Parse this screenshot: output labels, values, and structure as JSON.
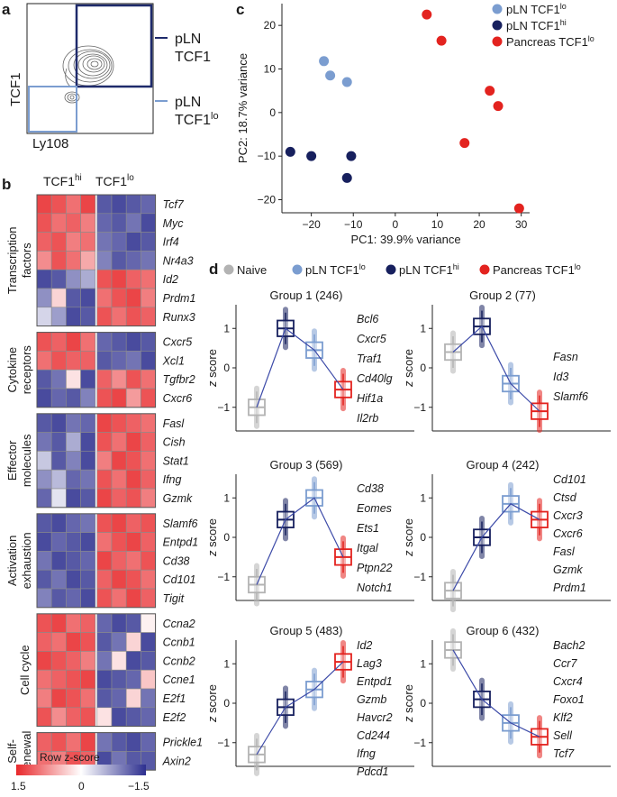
{
  "panels": {
    "a": {
      "label": "a",
      "gate_top_label": [
        "pLN",
        "TCF1"
      ],
      "gate_bottom_label": [
        "pLN",
        "TCF1",
        "lo"
      ],
      "ylabel": "TCF1",
      "xlabel": "Ly108"
    },
    "b": {
      "label": "b",
      "col_header_hi": [
        "TCF1",
        "hi"
      ],
      "col_header_lo": [
        "TCF1",
        "lo"
      ],
      "scale_title": "Row z-score",
      "scale_ticks": [
        "1.5",
        "0",
        "−1.5"
      ],
      "colors": {
        "high": "#e8282b",
        "mid": "#ffffff",
        "low": "#2d2f8f"
      },
      "groups": [
        {
          "category": [
            "Transcription",
            "factors"
          ],
          "genes": [
            "Tcf7",
            "Myc",
            "Irf4",
            "Nr4a3",
            "Id2",
            "Prdm1",
            "Runx3"
          ]
        },
        {
          "category": [
            "Cytokine",
            "receptors"
          ],
          "genes": [
            "Cxcr5",
            "Xcl1",
            "Tgfbr2",
            "Cxcr6"
          ]
        },
        {
          "category": [
            "Effector",
            "molecules"
          ],
          "genes": [
            "Fasl",
            "Cish",
            "Stat1",
            "Ifng",
            "Gzmk"
          ]
        },
        {
          "category": [
            "Activation",
            "exhaustion"
          ],
          "genes": [
            "Slamf6",
            "Entpd1",
            "Cd38",
            "Cd101",
            "Tigit"
          ]
        },
        {
          "category": [
            "Cell cycle"
          ],
          "genes": [
            "Ccna2",
            "Ccnb1",
            "Ccnb2",
            "Ccne1",
            "E2f1",
            "E2f2"
          ]
        },
        {
          "category": [
            "Self-",
            "renewal"
          ],
          "genes": [
            "Prickle1",
            "Axin2"
          ]
        }
      ],
      "heatmap": [
        [
          1.3,
          1.2,
          1.0,
          1.3,
          -1.2,
          -1.3,
          -1.2,
          -1.1
        ],
        [
          1.2,
          1.0,
          1.1,
          0.9,
          -1.1,
          -1.2,
          -1.0,
          -1.3
        ],
        [
          1.1,
          1.2,
          0.9,
          1.0,
          -1.0,
          -1.1,
          -1.3,
          -1.2
        ],
        [
          0.8,
          1.2,
          1.0,
          0.6,
          -0.9,
          -1.2,
          -1.1,
          -1.0
        ],
        [
          -1.3,
          -1.2,
          -0.8,
          -0.6,
          1.2,
          1.3,
          1.1,
          1.0
        ],
        [
          -0.8,
          0.3,
          -1.2,
          -1.3,
          1.0,
          1.2,
          1.3,
          0.9
        ],
        [
          -0.3,
          -0.7,
          -1.3,
          -1.2,
          1.2,
          1.0,
          1.2,
          1.1
        ],
        [
          1.2,
          1.1,
          1.3,
          1.0,
          -1.1,
          -1.2,
          -1.3,
          -1.2
        ],
        [
          1.0,
          1.2,
          1.1,
          1.1,
          -1.2,
          -1.1,
          -1.0,
          -1.3
        ],
        [
          -1.2,
          -1.0,
          0.2,
          -1.3,
          1.1,
          0.8,
          1.2,
          1.0
        ],
        [
          -1.3,
          -1.1,
          -1.2,
          -0.9,
          1.2,
          1.3,
          0.7,
          1.2
        ],
        [
          -1.2,
          -1.3,
          -1.0,
          -1.1,
          1.3,
          1.2,
          1.1,
          1.0
        ],
        [
          -1.0,
          -1.2,
          -0.6,
          -1.3,
          1.2,
          1.0,
          1.3,
          1.1
        ],
        [
          -0.4,
          -1.2,
          -0.9,
          -1.3,
          0.9,
          1.3,
          1.2,
          1.0
        ],
        [
          -0.8,
          -0.5,
          -1.1,
          -1.0,
          1.2,
          1.0,
          1.3,
          1.1
        ],
        [
          -1.1,
          -0.2,
          -1.3,
          -1.2,
          1.3,
          1.1,
          1.2,
          0.9
        ],
        [
          -1.2,
          -1.3,
          -1.1,
          -1.0,
          1.2,
          1.3,
          1.1,
          1.2
        ],
        [
          -1.3,
          -1.1,
          -1.2,
          -1.3,
          1.0,
          1.2,
          1.3,
          1.1
        ],
        [
          -1.0,
          -1.3,
          -1.2,
          -1.1,
          1.3,
          1.1,
          1.0,
          1.2
        ],
        [
          -1.2,
          -1.0,
          -1.3,
          -1.2,
          1.1,
          1.3,
          1.2,
          1.0
        ],
        [
          -0.9,
          -1.2,
          -1.1,
          -1.3,
          1.2,
          1.0,
          1.3,
          1.1
        ],
        [
          1.2,
          1.3,
          1.0,
          1.1,
          -1.1,
          -1.3,
          -1.2,
          0.1
        ],
        [
          1.1,
          1.0,
          1.3,
          1.2,
          -1.2,
          -1.0,
          0.3,
          -1.3
        ],
        [
          1.3,
          1.2,
          1.1,
          0.9,
          -1.0,
          0.2,
          -1.3,
          -1.2
        ],
        [
          1.0,
          1.1,
          1.2,
          1.3,
          -1.3,
          -1.2,
          -1.1,
          0.4
        ],
        [
          0.9,
          1.3,
          1.2,
          1.0,
          -1.2,
          -1.1,
          0.3,
          -1.0
        ],
        [
          1.2,
          0.8,
          1.1,
          1.2,
          0.2,
          -1.3,
          -1.2,
          -1.1
        ],
        [
          1.1,
          1.2,
          1.0,
          1.3,
          -1.0,
          -1.2,
          -1.3,
          -1.1
        ],
        [
          1.0,
          0.9,
          1.2,
          1.1,
          -1.3,
          -1.0,
          -1.2,
          -1.2
        ]
      ]
    },
    "c": {
      "label": "c",
      "chart_data": {
        "type": "scatter",
        "xlabel": "PC1: 39.9% variance",
        "ylabel": "PC2: 18.7% variance",
        "xlim": [
          -27,
          32
        ],
        "ylim": [
          -23,
          25
        ],
        "xticks": [
          -20,
          -10,
          0,
          10,
          20,
          30
        ],
        "yticks": [
          -20,
          -10,
          0,
          10,
          20
        ],
        "series": [
          {
            "name": "pLN TCF1lo",
            "name_base": "pLN TCF1",
            "name_sup": "lo",
            "color": "#7b9dd0",
            "x": [
              -17,
              -15.5,
              -11.5
            ],
            "y": [
              11.8,
              8.5,
              7.0
            ]
          },
          {
            "name": "pLN TCF1hi",
            "name_base": "pLN TCF1",
            "name_sup": "hi",
            "color": "#17205e",
            "x": [
              -25,
              -20,
              -10.5,
              -11.5
            ],
            "y": [
              -9,
              -10,
              -10,
              -15
            ]
          },
          {
            "name": "Pancreas TCF1lo",
            "name_base": "Pancreas TCF1",
            "name_sup": "lo",
            "color": "#e3231f",
            "x": [
              7.5,
              11,
              22.5,
              24.5,
              16.5,
              29.5
            ],
            "y": [
              22.5,
              16.5,
              5,
              1.5,
              -7,
              -22
            ]
          }
        ]
      }
    },
    "d": {
      "label": "d",
      "legend": [
        {
          "name": "Naive",
          "base": "Naive",
          "sup": "",
          "color": "#b3b3b3"
        },
        {
          "name": "pLN TCF1lo",
          "base": "pLN TCF1",
          "sup": "lo",
          "color": "#7b9dd0"
        },
        {
          "name": "pLN TCF1hi",
          "base": "pLN TCF1",
          "sup": "hi",
          "color": "#17205e"
        },
        {
          "name": "Pancreas TCF1lo",
          "base": "Pancreas TCF1",
          "sup": "lo",
          "color": "#e3231f"
        }
      ],
      "box_order": [
        "Naive",
        "pLN TCF1hi",
        "pLN TCF1lo",
        "Pancreas TCF1lo"
      ],
      "box_colors": [
        "#b3b3b3",
        "#17205e",
        "#7b9dd0",
        "#e3231f"
      ],
      "ylabel": "z score",
      "yticks": [
        1,
        0,
        -1
      ],
      "groups": [
        {
          "title": "Group 1 (246)",
          "medians": [
            -1.0,
            1.0,
            0.45,
            -0.55
          ],
          "genes": [
            "Bcl6",
            "Cxcr5",
            "Traf1",
            "Cd40lg",
            "Hif1a",
            "Il2rb"
          ]
        },
        {
          "title": "Group 2 (77)",
          "medians": [
            0.4,
            1.05,
            -0.4,
            -1.1
          ],
          "genes": [
            "Fasn",
            "Id3",
            "Slamf6"
          ]
        },
        {
          "title": "Group 3 (569)",
          "medians": [
            -1.2,
            0.45,
            1.0,
            -0.5
          ],
          "genes": [
            "Cd38",
            "Eomes",
            "Ets1",
            "Itgal",
            "Ptpn22",
            "Notch1"
          ]
        },
        {
          "title": "Group 4 (242)",
          "medians": [
            -1.35,
            0.0,
            0.85,
            0.45
          ],
          "genes": [
            "Cd101",
            "Ctsd",
            "Cxcr3",
            "Cxcr6",
            "Fasl",
            "Gzmk",
            "Prdm1"
          ]
        },
        {
          "title": "Group 5 (483)",
          "medians": [
            -1.3,
            -0.1,
            0.35,
            1.05
          ],
          "genes": [
            "Id2",
            "Lag3",
            "Entpd1",
            "Gzmb",
            "Havcr2",
            "Cd244",
            "Ifng",
            "Pdcd1"
          ]
        },
        {
          "title": "Group 6 (432)",
          "medians": [
            1.35,
            0.1,
            -0.5,
            -0.85
          ],
          "genes": [
            "Bach2",
            "Ccr7",
            "Cxcr4",
            "Foxo1",
            "Klf2",
            "Sell",
            "Tcf7"
          ]
        }
      ]
    }
  }
}
